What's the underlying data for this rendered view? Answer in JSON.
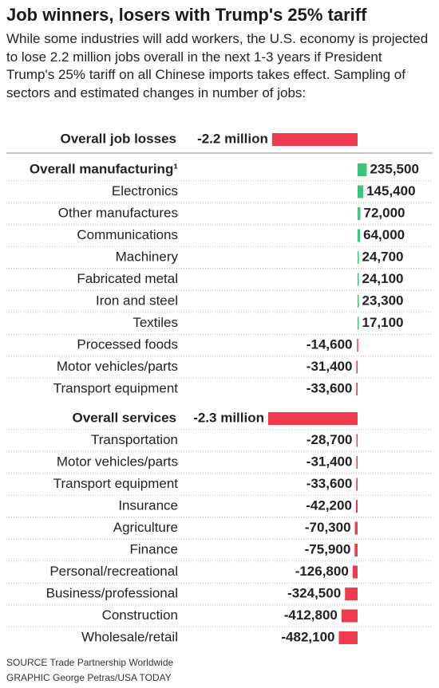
{
  "chart_data": {
    "type": "bar",
    "orientation": "horizontal",
    "title": "Job winners, losers with Trump's 25% tariff",
    "subtitle": "While some industries will add workers, the U.S. economy is projected to lose 2.2 million jobs overall in the next 1-3 years if President Trump's 25% tariff on all Chinese imports takes effect. Sampling of sectors and estimated changes in number of jobs:",
    "categories": [
      "Overall job losses",
      "Overall manufacturing¹",
      "Electronics",
      "Other manufactures",
      "Communications",
      "Machinery",
      "Fabricated metal",
      "Iron and steel",
      "Textiles",
      "Processed foods",
      "Motor vehicles/parts",
      "Transport equipment",
      "Overall services",
      "Transportation",
      "Motor vehicles/parts",
      "Transport equipment",
      "Insurance",
      "Agriculture",
      "Finance",
      "Personal/recreational",
      "Business/professional",
      "Construction",
      "Wholesale/retail"
    ],
    "values": [
      -2200000,
      235500,
      145400,
      72000,
      64000,
      24700,
      24100,
      23300,
      17100,
      -14600,
      -31400,
      -33600,
      -2300000,
      -28700,
      -31400,
      -33600,
      -42200,
      -70300,
      -75900,
      -126800,
      -324500,
      -412800,
      -482100
    ],
    "value_labels": [
      "-2.2 million",
      "235,500",
      "145,400",
      "72,000",
      "64,000",
      "24,700",
      "24,100",
      "23,300",
      "17,100",
      "-14,600",
      "-31,400",
      "-33,600",
      "-2.3 million",
      "-28,700",
      "-31,400",
      "-33,600",
      "-42,200",
      "-70,300",
      "-75,900",
      "-126,800",
      "-324,500",
      "-412,800",
      "-482,100"
    ],
    "positive_color": "#3dc47e",
    "negative_color": "#f03a4d",
    "source": "SOURCE Trade Partnership Worldwide",
    "credit": "GRAPHIC George Petras/USA TODAY"
  }
}
